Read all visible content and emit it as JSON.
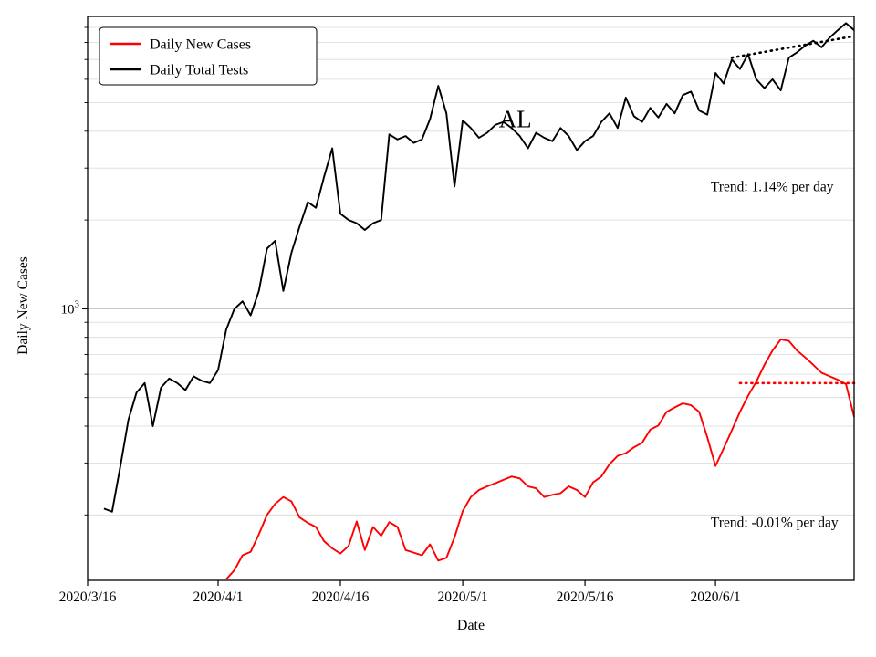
{
  "figure": {
    "title": "AL",
    "xlabel": "Date",
    "ylabel": "Daily New Cases",
    "y_major_tick": {
      "base": "10",
      "exp": "3"
    },
    "annotations": [
      {
        "text": "Trend: 1.14% per day",
        "fx": 0.813,
        "fy": 0.31,
        "color": "#000000"
      },
      {
        "text": "Trend: -0.01% per day",
        "fx": 0.813,
        "fy": 0.905,
        "color": "#000000"
      }
    ],
    "legend": [
      {
        "label": "Daily New Cases",
        "color": "#ff0000"
      },
      {
        "label": "Daily Total Tests",
        "color": "#000000"
      }
    ]
  },
  "chart_data": {
    "type": "line",
    "x_axis": "days since 2020/3/16",
    "xlim": [
      0,
      94
    ],
    "ylog": true,
    "ylim": [
      120,
      9800
    ],
    "grid": "horizontal log minor+major, light gray",
    "x_ticks": [
      {
        "index": 0,
        "label": "2020/3/16"
      },
      {
        "index": 16,
        "label": "2020/4/1"
      },
      {
        "index": 31,
        "label": "2020/4/16"
      },
      {
        "index": 46,
        "label": "2020/5/1"
      },
      {
        "index": 61,
        "label": "2020/5/16"
      },
      {
        "index": 77,
        "label": "2020/6/1"
      }
    ],
    "series": [
      {
        "name": "Daily Total Tests",
        "color": "#000000",
        "style": "solid",
        "start_index": 2,
        "values": [
          210,
          205,
          290,
          420,
          520,
          560,
          400,
          540,
          580,
          560,
          530,
          590,
          570,
          560,
          620,
          850,
          1000,
          1060,
          950,
          1150,
          1600,
          1700,
          1150,
          1550,
          1900,
          2300,
          2200,
          2800,
          3500,
          2100,
          2000,
          1950,
          1850,
          1950,
          2000,
          3900,
          3750,
          3850,
          3650,
          3750,
          4400,
          5700,
          4600,
          2600,
          4350,
          4100,
          3800,
          3950,
          4200,
          4300,
          4100,
          3850,
          3500,
          3950,
          3800,
          3700,
          4100,
          3850,
          3450,
          3700,
          3850,
          4300,
          4600,
          4100,
          5200,
          4500,
          4300,
          4800,
          4450,
          4950,
          4600,
          5300,
          5450,
          4700,
          4550,
          6300,
          5800,
          7000,
          6500,
          7300,
          6000,
          5600,
          6000,
          5500,
          7100,
          7400,
          7800,
          8100,
          7700,
          8300,
          8800,
          9300,
          8800
        ]
      },
      {
        "name": "Daily New Cases",
        "color": "#ff0000",
        "style": "solid",
        "start_index": 17,
        "values": [
          121,
          130,
          146,
          150,
          172,
          200,
          218,
          230,
          222,
          196,
          188,
          182,
          163,
          154,
          148,
          157,
          190,
          152,
          182,
          170,
          189,
          182,
          152,
          149,
          146,
          159,
          140,
          143,
          168,
          206,
          230,
          243,
          250,
          256,
          263,
          270,
          266,
          250,
          246,
          230,
          234,
          237,
          250,
          243,
          230,
          258,
          270,
          297,
          317,
          324,
          339,
          351,
          389,
          402,
          447,
          463,
          478,
          471,
          447,
          367,
          293,
          336,
          387,
          447,
          507,
          566,
          645,
          722,
          787,
          778,
          722,
          684,
          645,
          607,
          590,
          575,
          555,
          430
        ]
      },
      {
        "name": "Tests trend (1.14% per day)",
        "color": "#000000",
        "style": "dotted",
        "x": [
          79,
          94
        ],
        "values": [
          7100,
          8400
        ]
      },
      {
        "name": "Cases trend (-0.01% per day)",
        "color": "#ff0000",
        "style": "dotted",
        "x": [
          80,
          94
        ],
        "values": [
          560,
          560
        ]
      }
    ]
  }
}
